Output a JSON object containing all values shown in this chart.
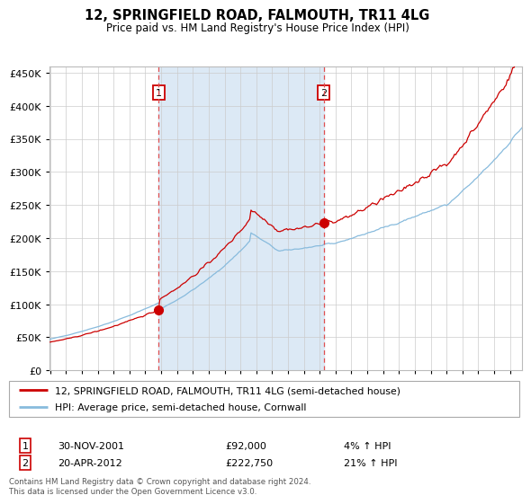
{
  "title": "12, SPRINGFIELD ROAD, FALMOUTH, TR11 4LG",
  "subtitle": "Price paid vs. HM Land Registry's House Price Index (HPI)",
  "legend_label1": "12, SPRINGFIELD ROAD, FALMOUTH, TR11 4LG (semi-detached house)",
  "legend_label2": "HPI: Average price, semi-detached house, Cornwall",
  "transaction1_date": "30-NOV-2001",
  "transaction1_price": 92000,
  "transaction1_hpi": "4%",
  "transaction2_date": "20-APR-2012",
  "transaction2_price": 222750,
  "transaction2_hpi": "21%",
  "footer": "Contains HM Land Registry data © Crown copyright and database right 2024.\nThis data is licensed under the Open Government Licence v3.0.",
  "bg_highlight_color": "#dce9f5",
  "vline_color": "#e05050",
  "hpi_line_color": "#88bbdd",
  "property_line_color": "#cc0000",
  "point_color": "#cc0000",
  "box_color": "#cc0000",
  "ylim": [
    0,
    460000
  ],
  "xlim_start": 1995.0,
  "xlim_end": 2024.8
}
